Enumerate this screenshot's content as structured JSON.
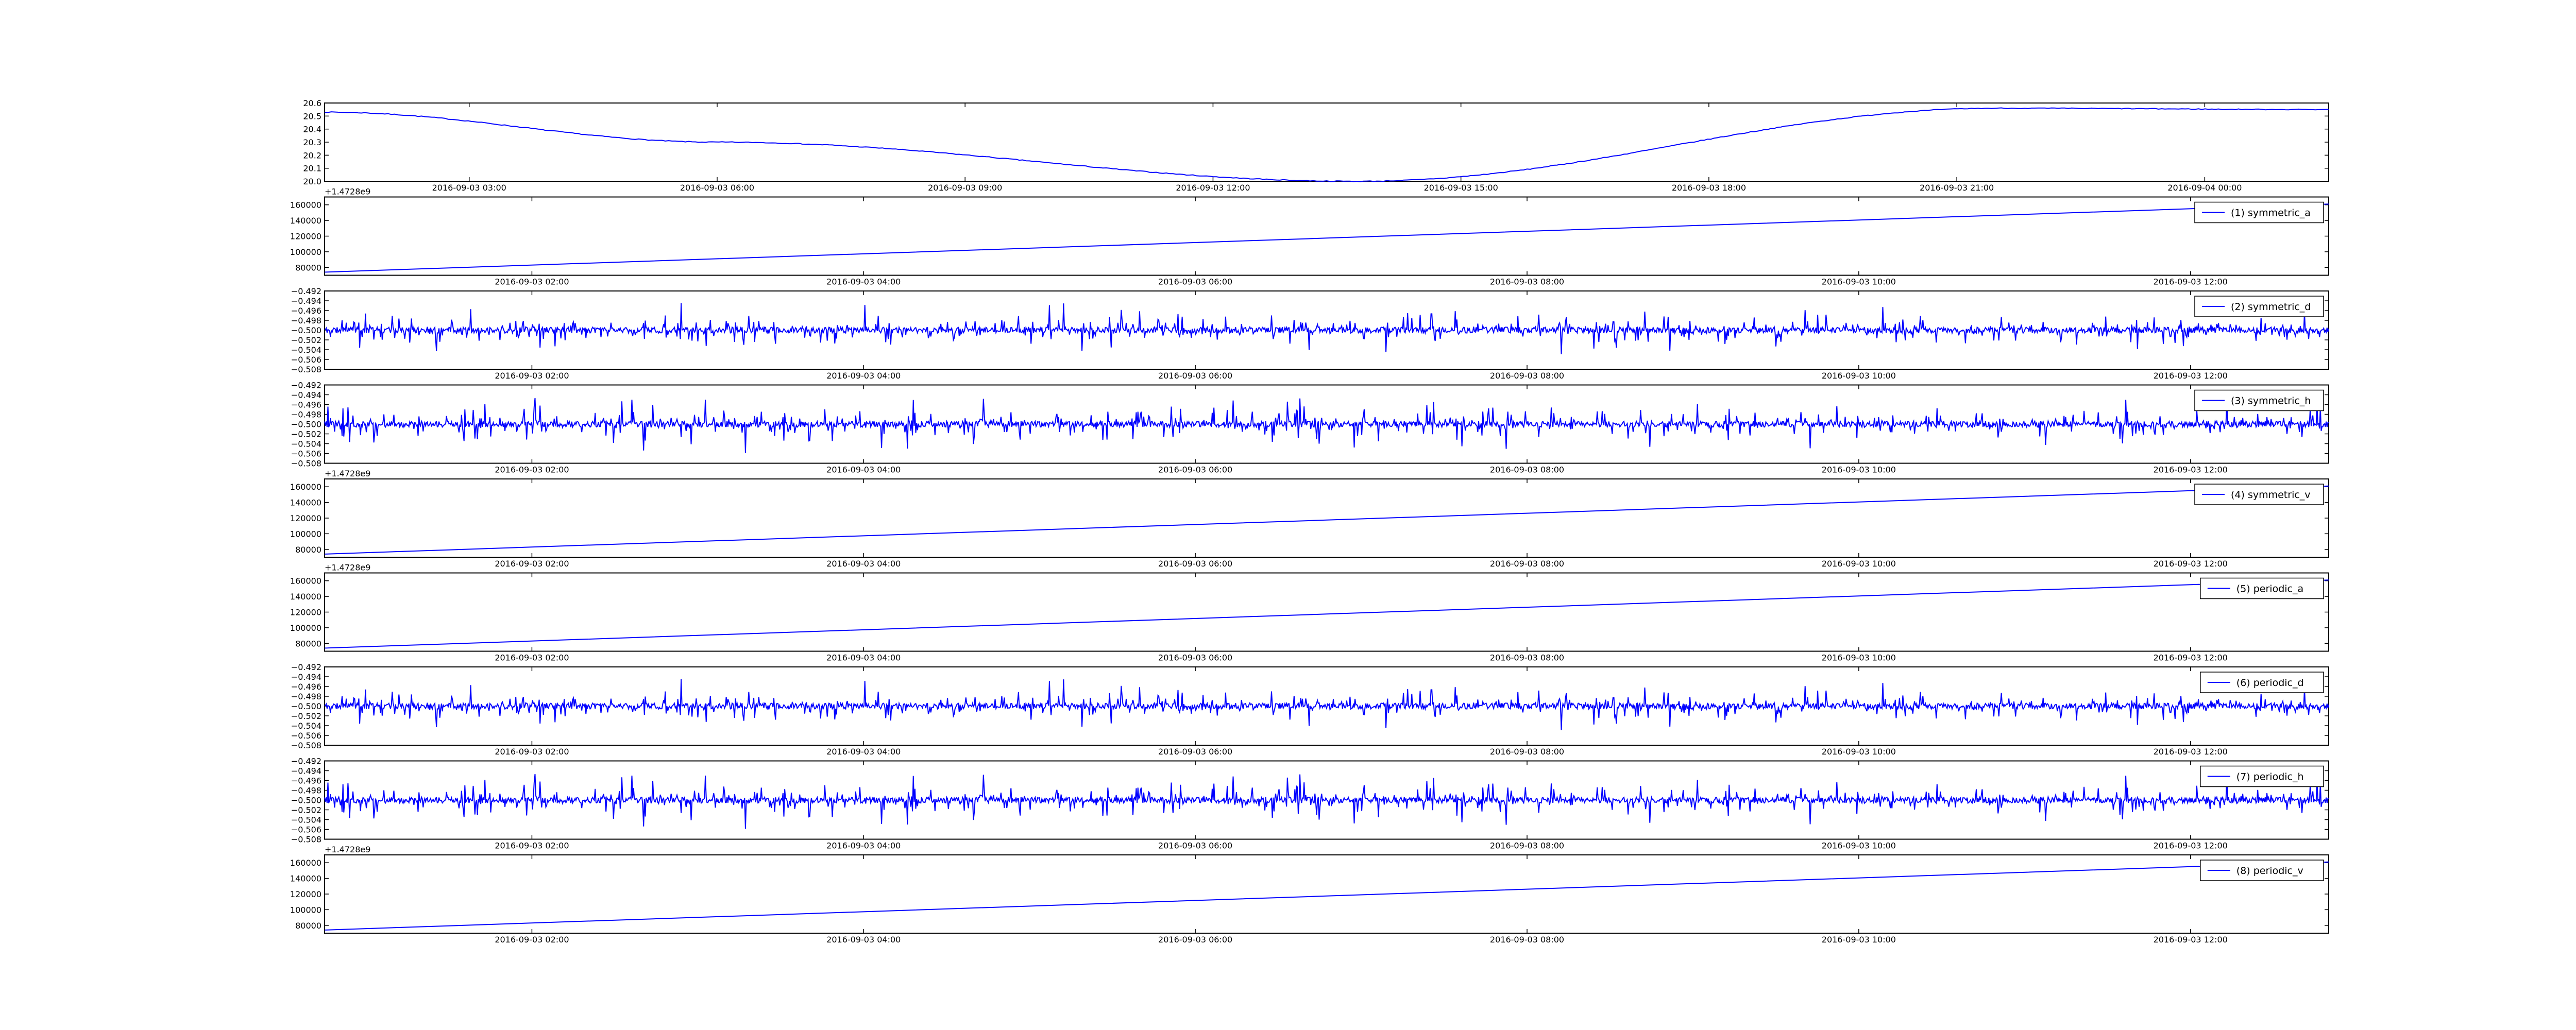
{
  "colors": {
    "line": "#0000ff",
    "axes": "#000000",
    "legend_border": "#000000"
  },
  "chart_data": [
    {
      "type": "line",
      "title": "",
      "legend": null,
      "x_axis": "time",
      "xlim": [
        "2016-09-03 01:15",
        "2016-09-04 01:30"
      ],
      "xticks": [
        "2016-09-03 03:00",
        "2016-09-03 06:00",
        "2016-09-03 09:00",
        "2016-09-03 12:00",
        "2016-09-03 15:00",
        "2016-09-03 18:00",
        "2016-09-03 21:00",
        "2016-09-04 00:00"
      ],
      "ylim": [
        20.0,
        20.6
      ],
      "yticks": [
        "20.6",
        "20.5",
        "20.4",
        "20.3",
        "20.2",
        "20.1",
        "20.0"
      ],
      "y_offset": "",
      "shape": "smooth_wave",
      "keypoints": [
        [
          "2016-09-03 01:15",
          20.53
        ],
        [
          "2016-09-03 06:00",
          20.3
        ],
        [
          "2016-09-03 13:45",
          20.0
        ],
        [
          "2016-09-03 21:30",
          20.56
        ],
        [
          "2016-09-04 01:30",
          20.55
        ]
      ]
    },
    {
      "type": "line",
      "legend": "(1) symmetric_a",
      "legend_placement": "top-right",
      "x_axis": "time",
      "xlim": [
        "2016-09-03 00:45",
        "2016-09-03 12:50"
      ],
      "xticks": [
        "2016-09-03 02:00",
        "2016-09-03 04:00",
        "2016-09-03 06:00",
        "2016-09-03 08:00",
        "2016-09-03 10:00",
        "2016-09-03 12:00"
      ],
      "ylim": [
        70000,
        170000
      ],
      "yticks": [
        "160000",
        "140000",
        "120000",
        "100000",
        "80000"
      ],
      "y_offset": "+1.4728e9",
      "shape": "linear",
      "keypoints": [
        [
          "2016-09-03 00:45",
          74000
        ],
        [
          "2016-09-03 12:50",
          161000
        ]
      ]
    },
    {
      "type": "line",
      "legend": "(2) symmetric_d",
      "legend_placement": "top-right",
      "x_axis": "time",
      "xlim": [
        "2016-09-03 00:45",
        "2016-09-03 12:50"
      ],
      "xticks": [
        "2016-09-03 02:00",
        "2016-09-03 04:00",
        "2016-09-03 06:00",
        "2016-09-03 08:00",
        "2016-09-03 10:00",
        "2016-09-03 12:00"
      ],
      "ylim": [
        -0.508,
        -0.492
      ],
      "yticks": [
        "−0.492",
        "−0.494",
        "−0.496",
        "−0.498",
        "−0.500",
        "−0.502",
        "−0.504",
        "−0.506",
        "−0.508"
      ],
      "y_offset": "",
      "shape": "noise",
      "center": -0.5,
      "seed": 11
    },
    {
      "type": "line",
      "legend": "(3) symmetric_h",
      "legend_placement": "top-right",
      "x_axis": "time",
      "xlim": [
        "2016-09-03 00:45",
        "2016-09-03 12:50"
      ],
      "xticks": [
        "2016-09-03 02:00",
        "2016-09-03 04:00",
        "2016-09-03 06:00",
        "2016-09-03 08:00",
        "2016-09-03 10:00",
        "2016-09-03 12:00"
      ],
      "ylim": [
        -0.508,
        -0.492
      ],
      "yticks": [
        "−0.492",
        "−0.494",
        "−0.496",
        "−0.498",
        "−0.500",
        "−0.502",
        "−0.504",
        "−0.506",
        "−0.508"
      ],
      "y_offset": "",
      "shape": "noise",
      "center": -0.5,
      "seed": 23
    },
    {
      "type": "line",
      "legend": "(4) symmetric_v",
      "legend_placement": "top-right",
      "x_axis": "time",
      "xlim": [
        "2016-09-03 00:45",
        "2016-09-03 12:50"
      ],
      "xticks": [
        "2016-09-03 02:00",
        "2016-09-03 04:00",
        "2016-09-03 06:00",
        "2016-09-03 08:00",
        "2016-09-03 10:00",
        "2016-09-03 12:00"
      ],
      "ylim": [
        70000,
        170000
      ],
      "yticks": [
        "160000",
        "140000",
        "120000",
        "100000",
        "80000"
      ],
      "y_offset": "+1.4728e9",
      "shape": "linear",
      "keypoints": [
        [
          "2016-09-03 00:45",
          74000
        ],
        [
          "2016-09-03 12:50",
          161000
        ]
      ]
    },
    {
      "type": "line",
      "legend": "(5) periodic_a",
      "legend_placement": "top-right",
      "x_axis": "time",
      "xlim": [
        "2016-09-03 00:45",
        "2016-09-03 12:50"
      ],
      "xticks": [
        "2016-09-03 02:00",
        "2016-09-03 04:00",
        "2016-09-03 06:00",
        "2016-09-03 08:00",
        "2016-09-03 10:00",
        "2016-09-03 12:00"
      ],
      "ylim": [
        70000,
        170000
      ],
      "yticks": [
        "160000",
        "140000",
        "120000",
        "100000",
        "80000"
      ],
      "y_offset": "+1.4728e9",
      "shape": "linear",
      "keypoints": [
        [
          "2016-09-03 00:45",
          74000
        ],
        [
          "2016-09-03 12:50",
          161000
        ]
      ]
    },
    {
      "type": "line",
      "legend": "(6) periodic_d",
      "legend_placement": "top-right",
      "x_axis": "time",
      "xlim": [
        "2016-09-03 00:45",
        "2016-09-03 12:50"
      ],
      "xticks": [
        "2016-09-03 02:00",
        "2016-09-03 04:00",
        "2016-09-03 06:00",
        "2016-09-03 08:00",
        "2016-09-03 10:00",
        "2016-09-03 12:00"
      ],
      "ylim": [
        -0.508,
        -0.492
      ],
      "yticks": [
        "−0.492",
        "−0.494",
        "−0.496",
        "−0.498",
        "−0.500",
        "−0.502",
        "−0.504",
        "−0.506",
        "−0.508"
      ],
      "y_offset": "",
      "shape": "noise",
      "center": -0.5,
      "seed": 11
    },
    {
      "type": "line",
      "legend": "(7) periodic_h",
      "legend_placement": "top-right",
      "x_axis": "time",
      "xlim": [
        "2016-09-03 00:45",
        "2016-09-03 12:50"
      ],
      "xticks": [
        "2016-09-03 02:00",
        "2016-09-03 04:00",
        "2016-09-03 06:00",
        "2016-09-03 08:00",
        "2016-09-03 10:00",
        "2016-09-03 12:00"
      ],
      "ylim": [
        -0.508,
        -0.492
      ],
      "yticks": [
        "−0.492",
        "−0.494",
        "−0.496",
        "−0.498",
        "−0.500",
        "−0.502",
        "−0.504",
        "−0.506",
        "−0.508"
      ],
      "y_offset": "",
      "shape": "noise",
      "center": -0.5,
      "seed": 23
    },
    {
      "type": "line",
      "legend": "(8) periodic_v",
      "legend_placement": "top-right",
      "x_axis": "time",
      "xlim": [
        "2016-09-03 00:45",
        "2016-09-03 12:50"
      ],
      "xticks": [
        "2016-09-03 02:00",
        "2016-09-03 04:00",
        "2016-09-03 06:00",
        "2016-09-03 08:00",
        "2016-09-03 10:00",
        "2016-09-03 12:00"
      ],
      "ylim": [
        70000,
        170000
      ],
      "yticks": [
        "160000",
        "140000",
        "120000",
        "100000",
        "80000"
      ],
      "y_offset": "+1.4728e9",
      "shape": "linear",
      "keypoints": [
        [
          "2016-09-03 00:45",
          74000
        ],
        [
          "2016-09-03 12:50",
          161000
        ]
      ]
    }
  ]
}
